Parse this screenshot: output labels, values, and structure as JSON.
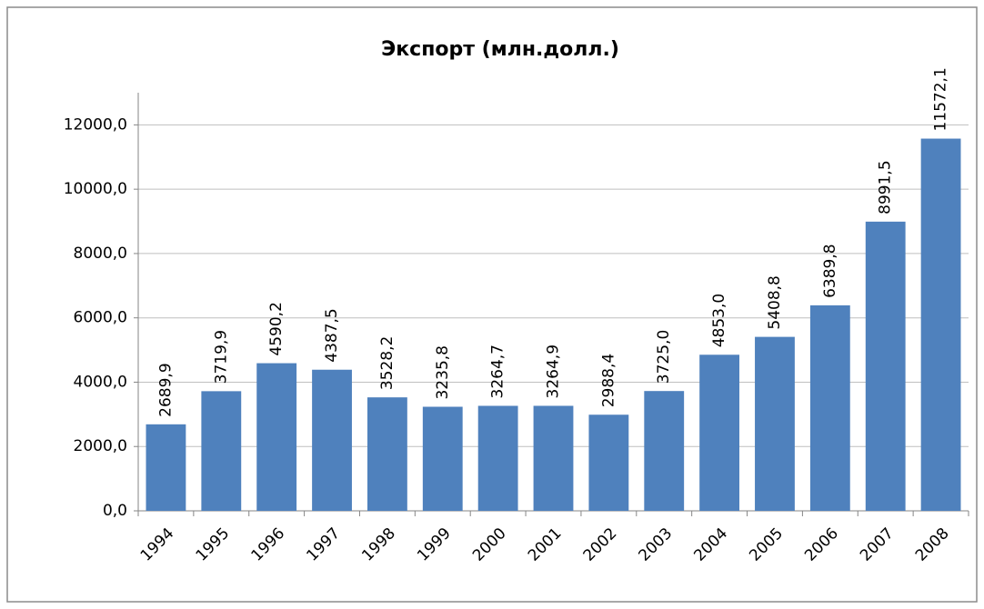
{
  "chart_data": {
    "type": "bar",
    "title": "Экспорт  (млн.долл.)",
    "categories": [
      "1994",
      "1995",
      "1996",
      "1997",
      "1998",
      "1999",
      "2000",
      "2001",
      "2002",
      "2003",
      "2004",
      "2005",
      "2006",
      "2007",
      "2008"
    ],
    "values": [
      2689.9,
      3719.9,
      4590.2,
      4387.5,
      3528.2,
      3235.8,
      3264.7,
      3264.9,
      2988.4,
      3725.0,
      4853.0,
      5408.8,
      6389.8,
      8991.5,
      11572.1
    ],
    "value_labels": [
      "2689,9",
      "3719,9",
      "4590,2",
      "4387,5",
      "3528,2",
      "3235,8",
      "3264,7",
      "3264,9",
      "2988,4",
      "3725,0",
      "4853,0",
      "5408,8",
      "6389,8",
      "8991,5",
      "11572,1"
    ],
    "color": "#4f81bd",
    "ylim": [
      0,
      13000
    ],
    "yticks": [
      {
        "value": 0,
        "label": "0,0"
      },
      {
        "value": 2000,
        "label": "2000,0"
      },
      {
        "value": 4000,
        "label": "4000,0"
      },
      {
        "value": 6000,
        "label": "6000,0"
      },
      {
        "value": 8000,
        "label": "8000,0"
      },
      {
        "value": 10000,
        "label": "10000,0"
      },
      {
        "value": 12000,
        "label": "12000,0"
      }
    ],
    "grid": true
  }
}
